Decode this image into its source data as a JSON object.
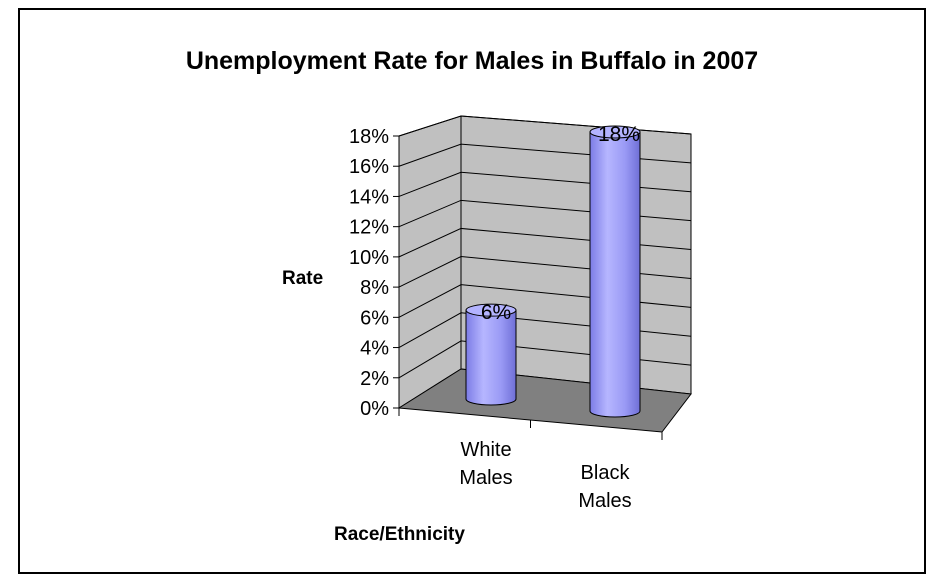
{
  "chart_data": {
    "type": "bar",
    "style": "3d-cylinder",
    "title": "Unemployment Rate for Males in Buffalo in 2007",
    "xlabel": "Race/Ethnicity",
    "ylabel": "Rate",
    "categories": [
      [
        "White",
        "Males"
      ],
      [
        "Black",
        "Males"
      ]
    ],
    "values": [
      6,
      18
    ],
    "data_labels": [
      "6%",
      "18%"
    ],
    "y_ticks": [
      "0%",
      "2%",
      "4%",
      "6%",
      "8%",
      "10%",
      "12%",
      "14%",
      "16%",
      "18%"
    ],
    "ylim": [
      0,
      18
    ],
    "grid": true,
    "legend": "none",
    "colors": {
      "bar_fill": "#9999ff",
      "bar_top": "#b3b3ff",
      "bar_stroke": "#000000",
      "wall_fill": "#c0c0c0",
      "floor_fill": "#808080",
      "grid": "#000000"
    }
  }
}
